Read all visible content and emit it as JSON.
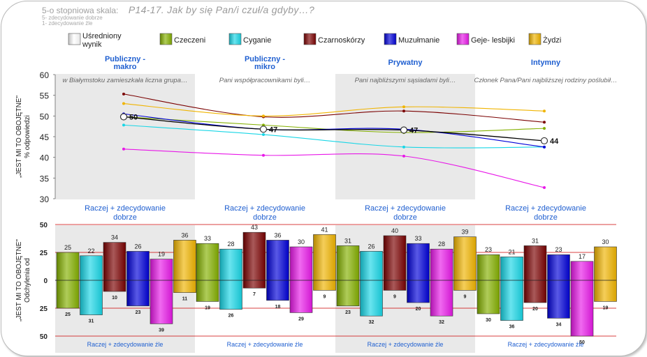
{
  "header": {
    "scale_label": "5-o stopniowa skala:",
    "title": "P14-17. Jak by się Pan/i czuł/a  gdyby…?",
    "scale_top": "5- zdecydowanie dobrze",
    "scale_bottom": "1- zdecydowanie źle"
  },
  "colors": {
    "Uśredniony wynik": "#ffffff",
    "Czeczeni": "#84b000",
    "Cyganie": "#18d6e6",
    "Czarnoskórzy": "#7a0000",
    "Muzułmanie": "#0000d8",
    "Geje- lesbijki": "#e818e8",
    "Żydzi": "#f0b400",
    "accent": "#1f5fd0",
    "refline": "#cc0000"
  },
  "chart_data": [
    {
      "type": "line",
      "title": "P14-17. Jak by się Pan/i czuł/a  gdyby…?",
      "ylabel": "% odpowiedzi „JEST MI TO OBOJĘTNE\"",
      "ylim": [
        30,
        60
      ],
      "yticks": [
        30,
        35,
        40,
        45,
        50,
        55,
        60
      ],
      "categories": [
        "Publiczny - makro",
        "Publiczny - mikro",
        "Prywatny",
        "Intymny"
      ],
      "situations": [
        "w Białymstoku zamieszkała liczna grupa…",
        "Pani współpracownikami byli…",
        "Pani najbliższymi sąsiadami byli…",
        "Członek Pana/Pani najbliższej rodziny poślubił…"
      ],
      "legend": [
        "Uśredniony wynik",
        "Czeczeni",
        "Cyganie",
        "Czarnoskórzy",
        "Muzułmanie",
        "Geje- lesbijki",
        "Żydzi"
      ],
      "series": [
        {
          "name": "Czeczeni",
          "values": [
            49.8,
            47.8,
            46.0,
            47.0
          ]
        },
        {
          "name": "Cyganie",
          "values": [
            47.8,
            45.5,
            42.5,
            42.5
          ]
        },
        {
          "name": "Czarnoskórzy",
          "values": [
            55.3,
            49.8,
            51.2,
            48.5
          ]
        },
        {
          "name": "Muzułmanie",
          "values": [
            50.5,
            46.8,
            46.8,
            42.5
          ]
        },
        {
          "name": "Geje- lesbijki",
          "values": [
            42.0,
            40.5,
            40.3,
            32.7
          ]
        },
        {
          "name": "Żydzi",
          "values": [
            53.0,
            50.0,
            52.2,
            51.2
          ]
        },
        {
          "name": "Uśredniony wynik",
          "values": [
            49.8,
            46.8,
            46.6,
            44.0
          ],
          "labels": [
            "50",
            "47",
            "47",
            "44"
          ]
        }
      ]
    },
    {
      "type": "bar",
      "ylabel": "Odchylenia od „JEST MI TO OBOJĘTNE\"",
      "yticks": [
        "50",
        "25",
        "0",
        "25",
        "50"
      ],
      "ylim": [
        -50,
        50
      ],
      "top_label": "Raczej + zdecydowanie dobrze",
      "bottom_label": "Raczej + zdecydowanie źle",
      "categories": [
        "Publiczny - makro",
        "Publiczny - mikro",
        "Prywatny",
        "Intymny"
      ],
      "groups": [
        "Czeczeni",
        "Cyganie",
        "Czarnoskórzy",
        "Muzułmanie",
        "Geje- lesbijki",
        "Żydzi"
      ],
      "positive": [
        [
          25,
          22,
          34,
          26,
          19,
          36
        ],
        [
          33,
          28,
          43,
          36,
          30,
          41
        ],
        [
          31,
          26,
          40,
          33,
          28,
          39
        ],
        [
          23,
          21,
          31,
          23,
          17,
          30
        ]
      ],
      "negative": [
        [
          25,
          31,
          10,
          23,
          39,
          11
        ],
        [
          19,
          26,
          7,
          18,
          29,
          9
        ],
        [
          23,
          32,
          9,
          20,
          32,
          9
        ],
        [
          30,
          36,
          20,
          34,
          50,
          19
        ]
      ]
    }
  ]
}
